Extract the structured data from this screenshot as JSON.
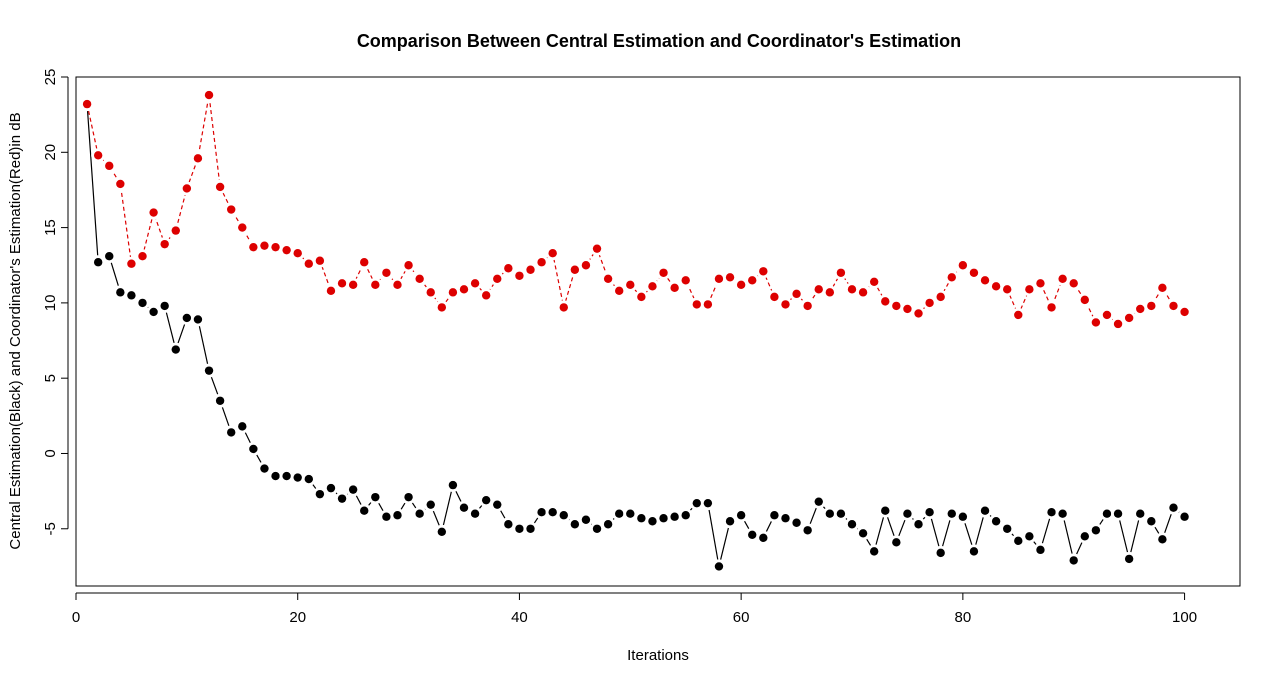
{
  "chart_data": {
    "type": "line",
    "title": "Comparison Between Central Estimation and Coordinator's Estimation",
    "xlabel": "Iterations",
    "ylabel": "Central Estimation(Black) and Coordinator's Estimation(Red)in dB",
    "xlim": [
      0,
      105
    ],
    "ylim": [
      -8.8,
      25
    ],
    "xticks": [
      0,
      20,
      40,
      60,
      80,
      100
    ],
    "yticks": [
      -5,
      0,
      5,
      10,
      15,
      20,
      25
    ],
    "grid": false,
    "legend": "none",
    "x": [
      1,
      2,
      3,
      4,
      5,
      6,
      7,
      8,
      9,
      10,
      11,
      12,
      13,
      14,
      15,
      16,
      17,
      18,
      19,
      20,
      21,
      22,
      23,
      24,
      25,
      26,
      27,
      28,
      29,
      30,
      31,
      32,
      33,
      34,
      35,
      36,
      37,
      38,
      39,
      40,
      41,
      42,
      43,
      44,
      45,
      46,
      47,
      48,
      49,
      50,
      51,
      52,
      53,
      54,
      55,
      56,
      57,
      58,
      59,
      60,
      61,
      62,
      63,
      64,
      65,
      66,
      67,
      68,
      69,
      70,
      71,
      72,
      73,
      74,
      75,
      76,
      77,
      78,
      79,
      80,
      81,
      82,
      83,
      84,
      85,
      86,
      87,
      88,
      89,
      90,
      91,
      92,
      93,
      94,
      95,
      96,
      97,
      98,
      99,
      100
    ],
    "series": [
      {
        "color": "#000000",
        "line_style": "solid",
        "values": [
          23.2,
          12.7,
          13.1,
          10.7,
          10.5,
          10.0,
          9.4,
          9.8,
          6.9,
          9.0,
          8.9,
          5.5,
          3.5,
          1.4,
          1.8,
          0.3,
          -1.0,
          -1.5,
          -1.5,
          -1.6,
          -1.7,
          -2.7,
          -2.3,
          -3.0,
          -2.4,
          -3.8,
          -2.9,
          -4.2,
          -4.1,
          -2.9,
          -4.0,
          -3.4,
          -5.2,
          -2.1,
          -3.6,
          -4.0,
          -3.1,
          -3.4,
          -4.7,
          -5.0,
          -5.0,
          -3.9,
          -3.9,
          -4.1,
          -4.7,
          -4.4,
          -5.0,
          -4.7,
          -4.0,
          -4.0,
          -4.3,
          -4.5,
          -4.3,
          -4.2,
          -4.1,
          -3.3,
          -3.3,
          -7.5,
          -4.5,
          -4.1,
          -5.4,
          -5.6,
          -4.1,
          -4.3,
          -4.6,
          -5.1,
          -3.2,
          -4.0,
          -4.0,
          -4.7,
          -5.3,
          -6.5,
          -3.8,
          -5.9,
          -4.0,
          -4.7,
          -3.9,
          -6.6,
          -4.0,
          -4.2,
          -6.5,
          -3.8,
          -4.5,
          -5.0,
          -5.8,
          -5.5,
          -6.4,
          -3.9,
          -4.0,
          -7.1,
          -5.5,
          -5.1,
          -4.0,
          -4.0,
          -7.0,
          -4.0,
          -4.5,
          -5.7,
          -3.6,
          -4.2
        ]
      },
      {
        "color": "#dd0000",
        "line_style": "dashed",
        "values": [
          23.2,
          19.8,
          19.1,
          17.9,
          12.6,
          13.1,
          16.0,
          13.9,
          14.8,
          17.6,
          19.6,
          23.8,
          17.7,
          16.2,
          15.0,
          13.7,
          13.8,
          13.7,
          13.5,
          13.3,
          12.6,
          12.8,
          10.8,
          11.3,
          11.2,
          12.7,
          11.2,
          12.0,
          11.2,
          12.5,
          11.6,
          10.7,
          9.7,
          10.7,
          10.9,
          11.3,
          10.5,
          11.6,
          12.3,
          11.8,
          12.2,
          12.7,
          13.3,
          9.7,
          12.2,
          12.5,
          13.6,
          11.6,
          10.8,
          11.2,
          10.4,
          11.1,
          12.0,
          11.0,
          11.5,
          9.9,
          9.9,
          11.6,
          11.7,
          11.2,
          11.5,
          12.1,
          10.4,
          9.9,
          10.6,
          9.8,
          10.9,
          10.7,
          12.0,
          10.9,
          10.7,
          11.4,
          10.1,
          9.8,
          9.6,
          9.3,
          10.0,
          10.4,
          11.7,
          12.5,
          12.0,
          11.5,
          11.1,
          10.9,
          9.2,
          10.9,
          11.3,
          9.7,
          11.6,
          11.3,
          10.2,
          8.7,
          9.2,
          8.6,
          9.0,
          9.6,
          9.8,
          11.0,
          9.8,
          9.4
        ]
      }
    ]
  }
}
